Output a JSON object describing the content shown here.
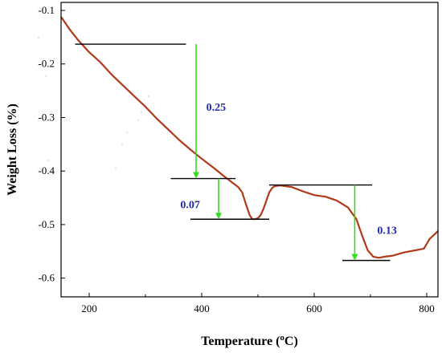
{
  "chart_data": {
    "type": "line",
    "title": "",
    "xlabel": "Temperature (°C)",
    "xlabel_main": "Temperature (",
    "xlabel_sup": "o",
    "xlabel_end": "C)",
    "ylabel": "Weight Loss (%)",
    "xlim": [
      150,
      820
    ],
    "ylim": [
      -0.635,
      -0.085
    ],
    "xticks": [
      200,
      400,
      600,
      800
    ],
    "xtick_labels": [
      "200",
      "400",
      "600",
      "800"
    ],
    "yticks": [
      -0.1,
      -0.2,
      -0.3,
      -0.4,
      -0.5,
      -0.6
    ],
    "ytick_labels": [
      "-0.1",
      "-0.2",
      "-0.3",
      "-0.4",
      "-0.5",
      "-0.6"
    ],
    "grid": false,
    "legend": "none",
    "series": [
      {
        "color": "#b03a1a",
        "x": [
          150,
          165,
          180,
          200,
          220,
          240,
          260,
          280,
          300,
          320,
          340,
          360,
          380,
          400,
          420,
          440,
          455,
          465,
          472,
          478,
          485,
          490,
          495,
          500,
          505,
          510,
          515,
          520,
          525,
          530,
          540,
          560,
          580,
          600,
          620,
          640,
          660,
          675,
          685,
          695,
          705,
          715,
          725,
          740,
          760,
          780,
          795,
          805,
          812,
          820
        ],
        "y": [
          -0.112,
          -0.135,
          -0.155,
          -0.178,
          -0.197,
          -0.22,
          -0.24,
          -0.26,
          -0.28,
          -0.302,
          -0.322,
          -0.342,
          -0.36,
          -0.377,
          -0.393,
          -0.41,
          -0.422,
          -0.43,
          -0.44,
          -0.46,
          -0.482,
          -0.49,
          -0.49,
          -0.488,
          -0.482,
          -0.47,
          -0.455,
          -0.44,
          -0.432,
          -0.428,
          -0.427,
          -0.43,
          -0.438,
          -0.445,
          -0.448,
          -0.455,
          -0.468,
          -0.49,
          -0.52,
          -0.548,
          -0.56,
          -0.562,
          -0.56,
          -0.558,
          -0.552,
          -0.548,
          -0.545,
          -0.527,
          -0.52,
          -0.512
        ]
      }
    ],
    "steps": [
      {
        "label": "0.25",
        "x_arrow": 390,
        "y_top": -0.163,
        "y_bottom": -0.414,
        "line_top_x": [
          175,
          372
        ],
        "line_bottom_x": [
          345,
          460
        ],
        "label_x": 408,
        "label_y": -0.28
      },
      {
        "label": "0.07",
        "x_arrow": 430,
        "y_top": -0.414,
        "y_bottom": -0.49,
        "line_bottom_x": [
          380,
          520
        ],
        "label_x": 362,
        "label_y": -0.462
      },
      {
        "label": "0.13",
        "x_arrow": 672,
        "y_top": -0.426,
        "y_bottom": -0.567,
        "line_top_x": [
          520,
          703
        ],
        "line_bottom_x": [
          650,
          735
        ],
        "label_x": 712,
        "label_y": -0.51
      }
    ],
    "colors": {
      "curve": "#b03a1a",
      "arrow": "#33dd22",
      "step_line": "#000000",
      "annotation": "#1f2aa8"
    }
  }
}
